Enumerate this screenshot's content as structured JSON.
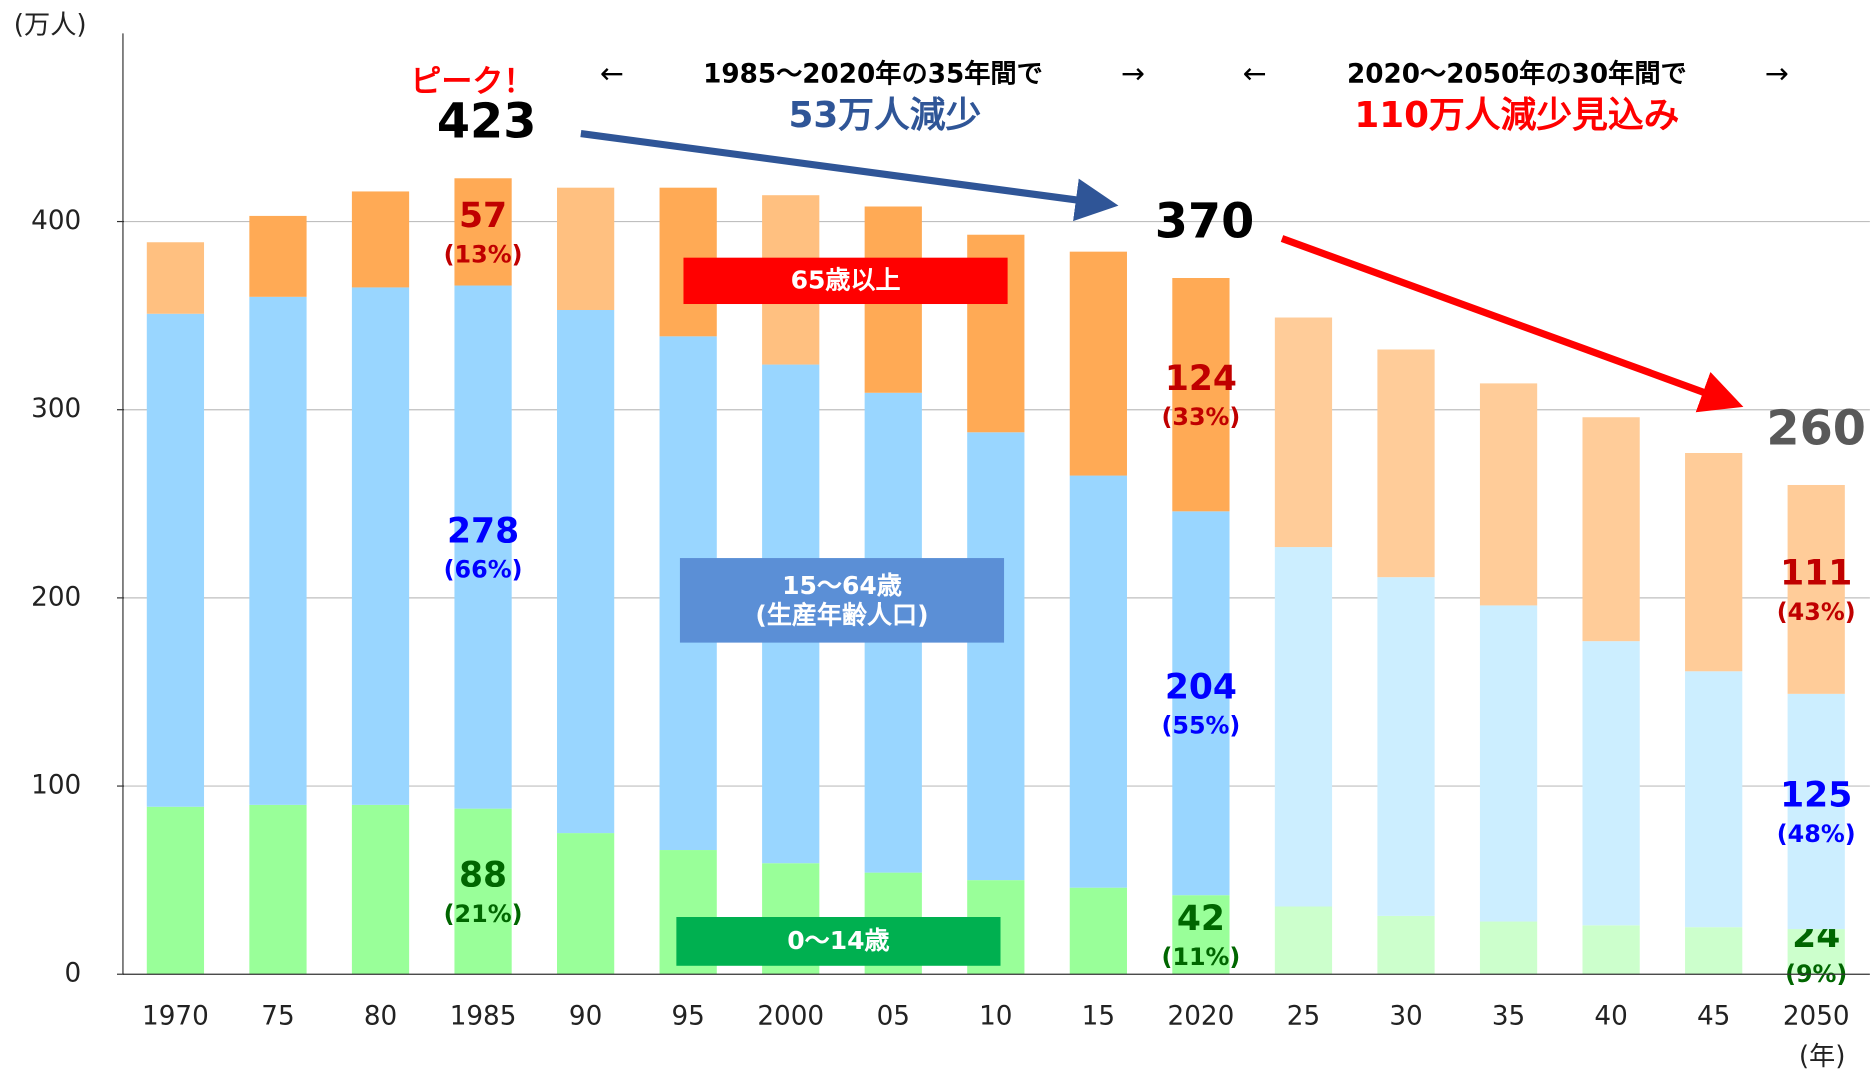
{
  "chart_data": {
    "type": "bar",
    "stacked": true,
    "y_unit": "(万人)",
    "x_unit": "(年)",
    "categories": [
      "1970",
      "75",
      "80",
      "1985",
      "90",
      "95",
      "2000",
      "05",
      "10",
      "15",
      "2020",
      "25",
      "30",
      "35",
      "40",
      "45",
      "2050"
    ],
    "series": [
      {
        "name": "0～14歳",
        "legend_color": "#00b050",
        "label_color": "#006600",
        "colors": [
          "#99ff99",
          "#99ff99",
          "#99ff99",
          "#99ff99",
          "#99ff99",
          "#99ff99",
          "#99ff99",
          "#99ff99",
          "#99ff99",
          "#99ff99",
          "#99ff99",
          "#ccffcc",
          "#ccffcc",
          "#ccffcc",
          "#ccffcc",
          "#ccffcc",
          "#ccffcc"
        ],
        "values": [
          89,
          90,
          90,
          88,
          75,
          66,
          59,
          54,
          50,
          46,
          42,
          36,
          31,
          28,
          26,
          25,
          24
        ],
        "share_labels": [
          null,
          null,
          null,
          "(21%)",
          null,
          null,
          null,
          null,
          null,
          null,
          "(11%)",
          null,
          null,
          null,
          null,
          null,
          "(9%)"
        ]
      },
      {
        "name": "15～64歳\n(生産年齢人口)",
        "legend_color": "#5b8fd6",
        "label_color": "#0000ff",
        "colors": [
          "#99d6ff",
          "#99d6ff",
          "#99d6ff",
          "#99d6ff",
          "#99d6ff",
          "#99d6ff",
          "#99d6ff",
          "#99d6ff",
          "#99d6ff",
          "#99d6ff",
          "#99d6ff",
          "#cceeff",
          "#cceeff",
          "#cceeff",
          "#cceeff",
          "#cceeff",
          "#cceeff"
        ],
        "values": [
          262,
          270,
          275,
          278,
          278,
          273,
          265,
          255,
          238,
          219,
          204,
          191,
          180,
          168,
          151,
          136,
          125
        ],
        "share_labels": [
          null,
          null,
          null,
          "(66%)",
          null,
          null,
          null,
          null,
          null,
          null,
          "(55%)",
          null,
          null,
          null,
          null,
          null,
          "(48%)"
        ]
      },
      {
        "name": "65歳以上",
        "legend_color": "#ff0000",
        "label_color": "#c00000",
        "colors": [
          "#ffc080",
          "#ffaa55",
          "#ffaa55",
          "#ffaa55",
          "#ffc080",
          "#ffaa55",
          "#ffc080",
          "#ffaa55",
          "#ffaa55",
          "#ffaa55",
          "#ffaa55",
          "#ffcc99",
          "#ffcc99",
          "#ffcc99",
          "#ffcc99",
          "#ffcc99",
          "#ffcc99"
        ],
        "values": [
          38,
          43,
          51,
          57,
          65,
          79,
          90,
          99,
          105,
          119,
          124,
          122,
          121,
          118,
          119,
          116,
          111
        ],
        "share_labels": [
          null,
          null,
          null,
          "(13%)",
          null,
          null,
          null,
          null,
          null,
          null,
          "(33%)",
          null,
          null,
          null,
          null,
          null,
          "(43%)"
        ]
      }
    ],
    "labeled": [
      false,
      false,
      false,
      true,
      false,
      false,
      false,
      false,
      false,
      false,
      true,
      false,
      false,
      false,
      false,
      false,
      true
    ],
    "totals": [
      null,
      null,
      null,
      423,
      null,
      null,
      null,
      null,
      null,
      null,
      370,
      null,
      null,
      null,
      null,
      null,
      260
    ],
    "annotations": {
      "peak": "ピーク！",
      "arrow_left": "←",
      "arrow_right": "→",
      "period1": "1985～2020年の35年間で",
      "decline1": "53万人減少",
      "period2": "2020～2050年の30年間で",
      "decline2": "110万人減少見込み"
    },
    "ylim": [
      0,
      500
    ],
    "yticks": [
      0,
      100,
      200,
      300,
      400
    ],
    "grid": true
  }
}
